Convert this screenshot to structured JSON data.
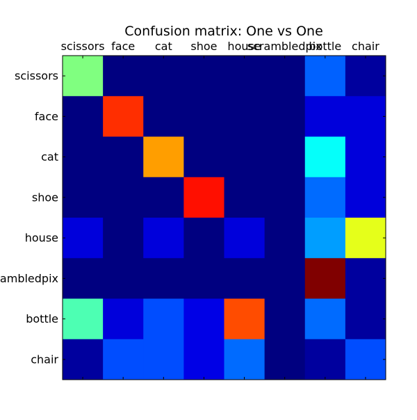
{
  "chart_data": {
    "type": "heatmap",
    "title": "Confusion matrix: One vs One",
    "x_tick_labels": [
      "scissors",
      "face",
      "cat",
      "shoe",
      "house",
      "scrambledpix",
      "bottle",
      "chair"
    ],
    "y_tick_labels": [
      "scissors",
      "face",
      "cat",
      "shoe",
      "house",
      "scrambledpix",
      "bottle",
      "chair"
    ],
    "x_tick_position": "top",
    "colormap": "jet",
    "value_range": [
      0,
      1
    ],
    "values": [
      [
        0.5,
        0.0,
        0.0,
        0.0,
        0.0,
        0.0,
        0.22,
        0.03
      ],
      [
        0.0,
        0.83,
        0.0,
        0.0,
        0.0,
        0.0,
        0.09,
        0.09
      ],
      [
        0.0,
        0.0,
        0.72,
        0.0,
        0.0,
        0.0,
        0.38,
        0.09
      ],
      [
        0.0,
        0.0,
        0.0,
        0.86,
        0.0,
        0.0,
        0.23,
        0.09
      ],
      [
        0.09,
        0.0,
        0.09,
        0.0,
        0.09,
        0.0,
        0.28,
        0.6
      ],
      [
        0.0,
        0.0,
        0.0,
        0.0,
        0.0,
        0.0,
        1.0,
        0.03
      ],
      [
        0.45,
        0.09,
        0.2,
        0.1,
        0.8,
        0.0,
        0.23,
        0.03
      ],
      [
        0.03,
        0.2,
        0.2,
        0.1,
        0.23,
        0.0,
        0.03,
        0.2
      ]
    ],
    "grid": false,
    "legend": "none"
  }
}
